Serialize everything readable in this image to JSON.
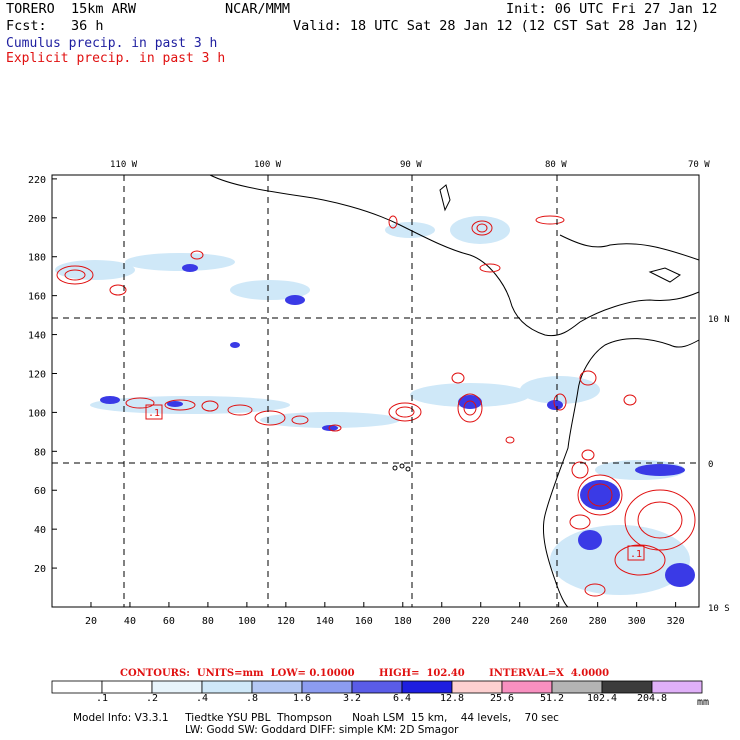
{
  "header": {
    "model": "TORERO  15km ARW",
    "org": "NCAR/MMM",
    "init": "Init: 06 UTC Fri 27 Jan 12",
    "fcst": "Fcst:   36 h",
    "valid": "Valid: 18 UTC Sat 28 Jan 12 (12 CST Sat 28 Jan 12)",
    "cumulus": "Cumulus precip. in past 3 h",
    "explicit": "Explicit precip. in past 3 h"
  },
  "map": {
    "lon_labels": [
      "110 W",
      "100 W",
      "90 W",
      "80 W",
      "70 W"
    ],
    "lat_labels": [
      "10 N",
      "0",
      "10 S"
    ],
    "x_ticks": [
      "20",
      "40",
      "60",
      "80",
      "100",
      "120",
      "140",
      "160",
      "180",
      "200",
      "220",
      "240",
      "260",
      "280",
      "300",
      "320"
    ],
    "y_ticks": [
      "20",
      "40",
      "60",
      "80",
      "100",
      "120",
      "140",
      "160",
      "180",
      "200",
      "220"
    ],
    "annotations": [
      ".1",
      ".1"
    ]
  },
  "contours_line": "CONTOURS:  UNITS=mm  LOW= 0.10000       HIGH=  102.40       INTERVAL=X  4.0000",
  "colorbar": {
    "labels": [
      ".1",
      ".2",
      ".4",
      ".8",
      "1.6",
      "3.2",
      "6.4",
      "12.8",
      "25.6",
      "51.2",
      "102.4",
      "204.8"
    ],
    "unit": "mm",
    "colors": [
      "#ffffff",
      "#ffffff",
      "#e8f4fb",
      "#cfe8f8",
      "#b4c8f4",
      "#8c9cf0",
      "#5a5ce8",
      "#1e1ee0",
      "#fdd0d0",
      "#f890c0",
      "#b4b4b4",
      "#3c3c3c",
      "#e0b0f8"
    ]
  },
  "model_info": {
    "line1": "Model Info: V3.3.1     Tiedtke YSU PBL  Thompson      Noah LSM  15 km,    44 levels,    70 sec",
    "line2": "LW: Godd SW: Goddard DIFF: simple KM: 2D Smagor"
  }
}
